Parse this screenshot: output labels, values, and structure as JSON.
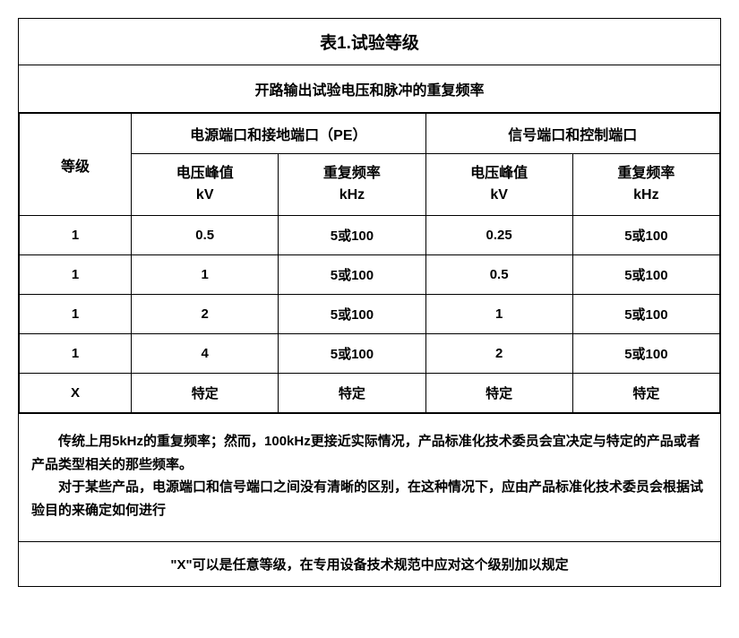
{
  "title": "表1.试验等级",
  "subtitle": "开路输出试验电压和脉冲的重复频率",
  "headers": {
    "level": "等级",
    "power_port": "电源端口和接地端口（PE）",
    "signal_port": "信号端口和控制端口",
    "voltage_peak": "电压峰值",
    "voltage_unit": "kV",
    "repeat_freq": "重复频率",
    "freq_unit": "kHz"
  },
  "rows": [
    {
      "level": "1",
      "pwr_v": "0.5",
      "pwr_f": "5或100",
      "sig_v": "0.25",
      "sig_f": "5或100"
    },
    {
      "level": "1",
      "pwr_v": "1",
      "pwr_f": "5或100",
      "sig_v": "0.5",
      "sig_f": "5或100"
    },
    {
      "level": "1",
      "pwr_v": "2",
      "pwr_f": "5或100",
      "sig_v": "1",
      "sig_f": "5或100"
    },
    {
      "level": "1",
      "pwr_v": "4",
      "pwr_f": "5或100",
      "sig_v": "2",
      "sig_f": "5或100"
    },
    {
      "level": "X",
      "pwr_v": "特定",
      "pwr_f": "特定",
      "sig_v": "特定",
      "sig_f": "特定"
    }
  ],
  "notes": {
    "p1": "传统上用5kHz的重复频率；然而，100kHz更接近实际情况，产品标准化技术委员会宜决定与特定的产品或者产品类型相关的那些频率。",
    "p2": "对于某些产品，电源端口和信号端口之间没有清晰的区别，在这种情况下，应由产品标准化技术委员会根据试验目的来确定如何进行"
  },
  "footer": "\"X\"可以是任意等级，在专用设备技术规范中应对这个级别加以规定",
  "style": {
    "border_color": "#000000",
    "background": "#ffffff",
    "font_family": "Microsoft YaHei"
  }
}
